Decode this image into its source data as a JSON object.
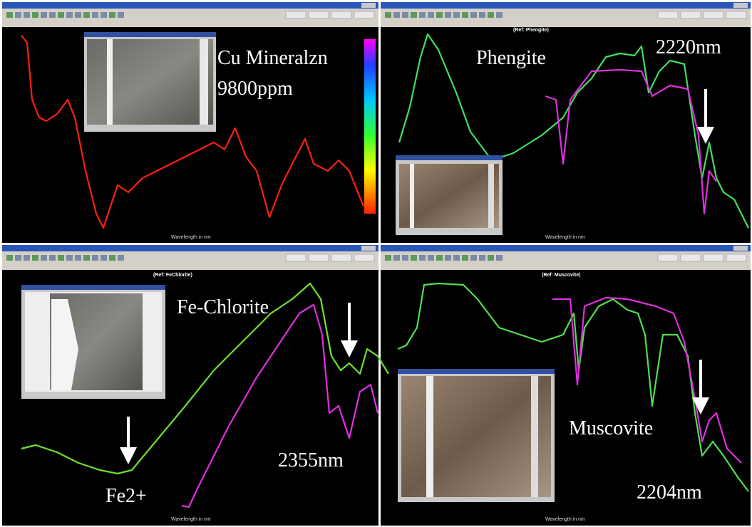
{
  "panels": [
    {
      "annotations": [
        "Cu Mineralzn",
        "9800ppm"
      ],
      "axis_title": "Wavelength in nm"
    },
    {
      "annotations": [
        "Phengite",
        "2220nm"
      ],
      "header": "(Ref: Phengite)",
      "axis_title": "Wavelength in nm"
    },
    {
      "annotations": [
        "Fe-Chlorite",
        "2355nm",
        "Fe2+"
      ],
      "header": "(Ref: FeChlorite)",
      "axis_title": "Wavelength in nm"
    },
    {
      "annotations": [
        "Muscovite",
        "2204nm"
      ],
      "header": "(Ref: Muscovite)",
      "axis_title": "Wavelength in nm"
    }
  ]
}
